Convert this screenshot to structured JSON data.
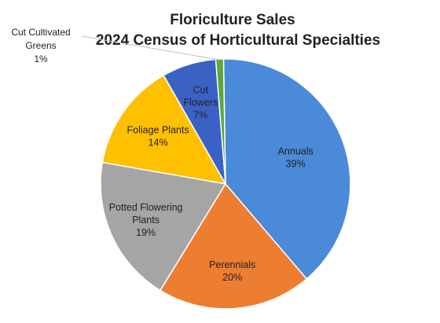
{
  "chart_data": {
    "type": "pie",
    "title_lines": [
      "Floriculture Sales",
      "2024 Census of Horticultural Specialties"
    ],
    "slices": [
      {
        "label_lines": [
          "Annuals"
        ],
        "value": 39,
        "value_label": "39%",
        "color": "#4a8ad9"
      },
      {
        "label_lines": [
          "Perennials"
        ],
        "value": 20,
        "value_label": "20%",
        "color": "#ed7d31"
      },
      {
        "label_lines": [
          "Potted Flowering",
          "Plants"
        ],
        "value": 19,
        "value_label": "19%",
        "color": "#a5a5a5"
      },
      {
        "label_lines": [
          "Foliage Plants"
        ],
        "value": 14,
        "value_label": "14%",
        "color": "#ffc000"
      },
      {
        "label_lines": [
          "Cut",
          "Flowers"
        ],
        "value": 7,
        "value_label": "7%",
        "color": "#3a62c4"
      },
      {
        "label_lines": [
          "Cut Cultivated",
          "Greens"
        ],
        "value": 1,
        "value_label": "1%",
        "color": "#5aa83a"
      }
    ],
    "legend": "none",
    "start_angle": "top, clockwise"
  }
}
